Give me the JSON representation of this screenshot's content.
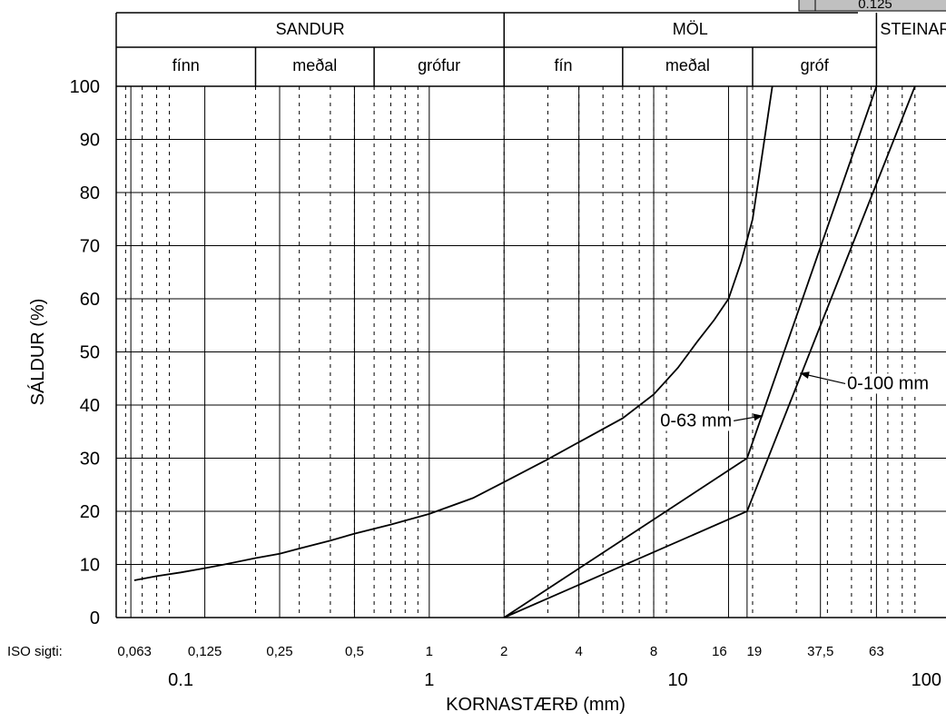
{
  "chart_data": {
    "type": "line",
    "xlabel": "KORNASTÆRÐ (mm)",
    "ylabel": "SÁLDUR (%)",
    "xscale": "log",
    "xlim": [
      0.055,
      120
    ],
    "ylim": [
      0,
      100
    ],
    "yticks": [
      0,
      10,
      20,
      30,
      40,
      50,
      60,
      70,
      80,
      90,
      100
    ],
    "xticks_major": [
      {
        "value": 0.1,
        "label": "0.1"
      },
      {
        "value": 1,
        "label": "1"
      },
      {
        "value": 10,
        "label": "10"
      },
      {
        "value": 100,
        "label": "100"
      }
    ],
    "grid": true,
    "iso_sieves": {
      "label": "ISO sigti:",
      "items": [
        {
          "value": 0.063,
          "label": "0,063"
        },
        {
          "value": 0.125,
          "label": "0,125"
        },
        {
          "value": 0.25,
          "label": "0,25"
        },
        {
          "value": 0.5,
          "label": "0,5"
        },
        {
          "value": 1,
          "label": "1"
        },
        {
          "value": 2,
          "label": "2"
        },
        {
          "value": 4,
          "label": "4"
        },
        {
          "value": 8,
          "label": "8"
        },
        {
          "value": 16,
          "label": "16"
        },
        {
          "value": 19,
          "label": "19"
        },
        {
          "value": 37.5,
          "label": "37,5"
        },
        {
          "value": 63,
          "label": "63"
        }
      ]
    },
    "header": {
      "groups": [
        {
          "label": "SANDUR",
          "from": 0.055,
          "to": 2
        },
        {
          "label": "MÖL",
          "from": 2,
          "to": 63
        },
        {
          "label": "STEINAR",
          "from": 63,
          "to": 120
        }
      ],
      "subgroups": [
        {
          "label": "fínn",
          "from": 0.055,
          "to": 0.2
        },
        {
          "label": "meðal",
          "from": 0.2,
          "to": 0.6
        },
        {
          "label": "grófur",
          "from": 0.6,
          "to": 2
        },
        {
          "label": "fín",
          "from": 2,
          "to": 6
        },
        {
          "label": "meðal",
          "from": 6,
          "to": 20
        },
        {
          "label": "gróf",
          "from": 20,
          "to": 63
        }
      ]
    },
    "corner_label": "0.125",
    "series": [
      {
        "x": [
          0.065,
          0.08,
          0.1,
          0.125,
          0.15,
          0.2,
          0.25,
          0.3,
          0.4,
          0.5,
          0.7,
          1,
          1.5,
          2,
          3,
          4,
          6,
          8,
          10,
          12,
          14,
          16,
          18,
          20,
          22,
          24
        ],
        "y": [
          7,
          7.8,
          8.5,
          9.3,
          10,
          11.2,
          12,
          13,
          14.5,
          15.8,
          17.5,
          19.5,
          22.5,
          25.5,
          29.8,
          33,
          37.5,
          42,
          47,
          52,
          56,
          60,
          67,
          75,
          88,
          100
        ]
      },
      {
        "x": [
          2,
          19,
          63
        ],
        "y": [
          0,
          30,
          100
        ]
      },
      {
        "x": [
          2,
          19,
          90
        ],
        "y": [
          0,
          20,
          100
        ]
      }
    ],
    "annotations": [
      {
        "text": "0-63 mm",
        "at": [
          8.5,
          36
        ],
        "points_to": [
          22,
          38
        ]
      },
      {
        "text": "0-100 mm",
        "at": [
          48,
          43
        ],
        "points_to": [
          31,
          46
        ]
      }
    ]
  }
}
